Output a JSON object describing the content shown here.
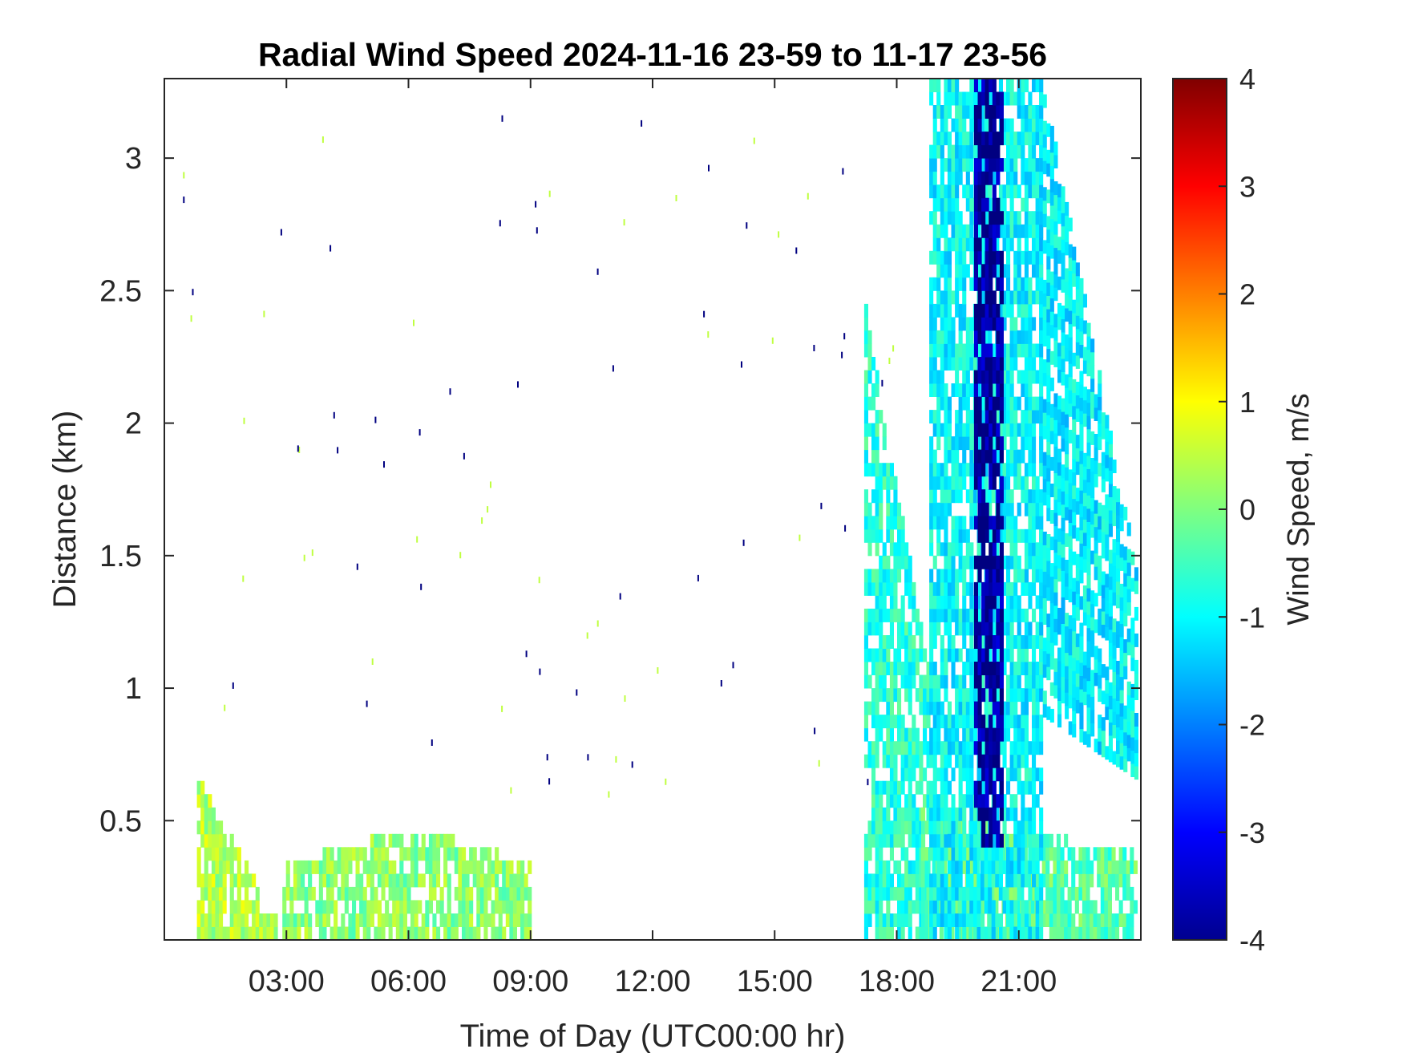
{
  "chart_data": {
    "type": "heatmap",
    "title": "Radial Wind Speed 2024-11-16 23-59 to 11-17 23-56",
    "xlabel": "Time of Day (UTC00:00 hr)",
    "ylabel": "Distance (km)",
    "colorbar_label": "Wind Speed, m/s",
    "xlim": [
      0,
      24
    ],
    "ylim": [
      0.05,
      3.3
    ],
    "clim": [
      -4,
      4
    ],
    "colormap": "jet",
    "x_ticks": [
      {
        "value": 3,
        "label": "03:00"
      },
      {
        "value": 6,
        "label": "06:00"
      },
      {
        "value": 9,
        "label": "09:00"
      },
      {
        "value": 12,
        "label": "12:00"
      },
      {
        "value": 15,
        "label": "15:00"
      },
      {
        "value": 18,
        "label": "18:00"
      },
      {
        "value": 21,
        "label": "21:00"
      }
    ],
    "y_ticks": [
      {
        "value": 0.5,
        "label": "0.5"
      },
      {
        "value": 1,
        "label": "1"
      },
      {
        "value": 1.5,
        "label": "1.5"
      },
      {
        "value": 2,
        "label": "2"
      },
      {
        "value": 2.5,
        "label": "2.5"
      },
      {
        "value": 3,
        "label": "3"
      }
    ],
    "c_ticks": [
      {
        "value": 4,
        "label": "4"
      },
      {
        "value": 3,
        "label": "3"
      },
      {
        "value": 2,
        "label": "2"
      },
      {
        "value": 1,
        "label": "1"
      },
      {
        "value": 0,
        "label": "0"
      },
      {
        "value": -1,
        "label": "-1"
      },
      {
        "value": -2,
        "label": "-2"
      },
      {
        "value": -3,
        "label": "-3"
      },
      {
        "value": -4,
        "label": "-4"
      }
    ],
    "grid": false,
    "regions": [
      {
        "t0": 0.8,
        "t1": 2.7,
        "top0": 0.65,
        "top1": 0.1,
        "speed": 0.4
      },
      {
        "t0": 2.9,
        "t1": 9.0,
        "top0": 0.3,
        "top1": 0.3,
        "bulge": 0.12,
        "speed": 0.1
      },
      {
        "t0": 17.2,
        "t1": 18.8,
        "top0": 2.4,
        "top1": 1.0,
        "speed": -0.7
      },
      {
        "t0": 18.6,
        "t1": 23.9,
        "top0": 0.5,
        "top1": 0.35,
        "speed": -0.3
      },
      {
        "t0": 18.8,
        "t1": 21.5,
        "top0": 3.3,
        "top1": 3.3,
        "speed": -1.0
      },
      {
        "t0": 21.5,
        "t1": 23.9,
        "top0": 3.3,
        "top1": 1.4,
        "bottom0": 0.9,
        "bottom1": 0.65,
        "speed": -1.1
      },
      {
        "t0": 19.9,
        "t1": 20.6,
        "top0": 3.3,
        "top1": 3.3,
        "bottom0": 0.4,
        "bottom1": 0.4,
        "speed": -3.8
      }
    ]
  }
}
